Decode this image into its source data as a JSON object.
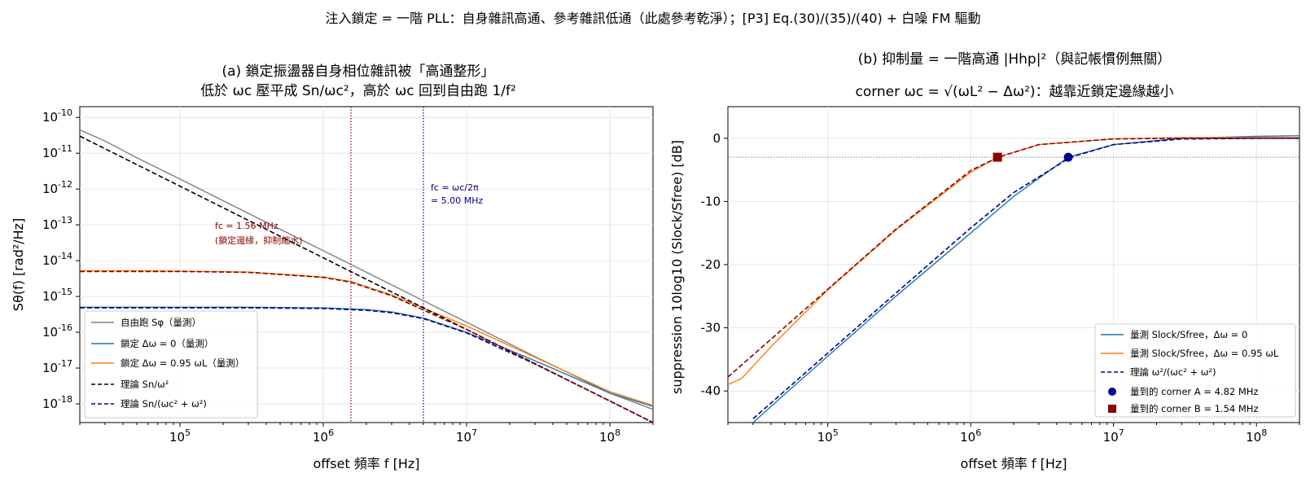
{
  "suptitle": "注入鎖定 = 一階 PLL：自身雜訊高通、參考雜訊低通（此處參考乾淨）；[P3] Eq.(30)/(35)/(40) + 白噪 FM 驅動",
  "panel_a": {
    "title_line1": "(a) 鎖定振盪器自身相位雜訊被「高通整形」",
    "title_line2": "低於 ωc 壓平成 Sn/ωc²，高於 ωc 回到自由跑 1/f²",
    "xlabel": "offset 頻率 f [Hz]",
    "ylabel": "Sθ(f) [rad²/Hz]",
    "annotation_blue_1": "fc = ωc/2π",
    "annotation_blue_2": "= 5.00 MHz",
    "annotation_red_1": "fc = 1.56 MHz",
    "annotation_red_2": "(鎖定邊緣，抑制縮水)",
    "legend": [
      "自由跑 Sφ（量測）",
      "鎖定 Δω = 0（量測）",
      "鎖定 Δω = 0.95 ωL（量測）",
      "理論 Sn/ω²",
      "理論 Sn/(ωc² + ω²)"
    ]
  },
  "panel_b": {
    "title_line1": "(b) 抑制量 = 一階高通 |Hhp|²（與記帳慣例無關）",
    "title_line2": "corner ωc = √(ωL² − Δω²)：越靠近鎖定邊緣越小",
    "xlabel": "offset 頻率 f [Hz]",
    "ylabel": "suppression 10log10 (Slock/Sfree) [dB]",
    "legend": [
      "量測 Slock/Sfree，Δω = 0",
      "量測 Slock/Sfree，Δω = 0.95 ωL",
      "理論 ω²/(ωc² + ω²)",
      "量到的 corner A = 4.82 MHz",
      "量到的 corner B = 1.54 MHz"
    ]
  },
  "colors": {
    "free": "#808080",
    "lock_a": "#1f77b4",
    "lock_b": "#ff7f0e",
    "theory_free": "#000000",
    "theory_hp": "#00008b",
    "fc_b": "#8b0000",
    "grid": "#e6e6e6"
  },
  "chart_data": [
    {
      "type": "line",
      "panel": "a",
      "x_scale": "log",
      "y_scale": "log",
      "xlim": [
        20000,
        200000000
      ],
      "ylim": [
        3e-19,
        2e-10
      ],
      "x_ticks": [
        100000,
        1000000,
        10000000,
        100000000
      ],
      "x_tick_labels": [
        "10^5",
        "10^6",
        "10^7",
        "10^8"
      ],
      "y_ticks": [
        1e-18,
        1e-17,
        1e-16,
        1e-15,
        1e-14,
        1e-13,
        1e-12,
        1e-11,
        1e-10
      ],
      "y_tick_labels": [
        "10^-18",
        "10^-17",
        "10^-16",
        "10^-15",
        "10^-14",
        "10^-13",
        "10^-12",
        "10^-11",
        "10^-10"
      ],
      "grid": true,
      "legend_position": "lower-left",
      "vlines": [
        {
          "x": 1560000,
          "color": "#8b0000",
          "style": "dotted"
        },
        {
          "x": 5000000,
          "color": "#00008b",
          "style": "dotted"
        }
      ],
      "series": [
        {
          "name": "自由跑 Sφ（量測）",
          "color": "#808080",
          "dash": "solid",
          "x": [
            20000,
            30000,
            50000,
            100000,
            300000,
            1000000,
            3000000,
            10000000,
            30000000,
            100000000,
            200000000
          ],
          "y": [
            4.5e-11,
            2.2e-11,
            7.5e-12,
            1.9e-12,
            2.1e-13,
            1.9e-14,
            2.1e-15,
            1.9e-16,
            2.1e-17,
            2e-18,
            7e-19
          ]
        },
        {
          "name": "鎖定 Δω = 0（量測）",
          "color": "#1f77b4",
          "dash": "solid",
          "x": [
            20000,
            50000,
            100000,
            300000,
            1000000,
            2000000,
            3000000,
            5000000,
            10000000,
            30000000,
            100000000,
            200000000
          ],
          "y": [
            5e-16,
            5e-16,
            5e-16,
            5e-16,
            4.8e-16,
            4.3e-16,
            3.7e-16,
            2.5e-16,
            1e-16,
            1.6e-17,
            2e-18,
            8.5e-19
          ]
        },
        {
          "name": "鎖定 Δω = 0.95 ωL（量測）",
          "color": "#ff7f0e",
          "dash": "solid",
          "x": [
            20000,
            50000,
            100000,
            300000,
            1000000,
            1560000,
            3000000,
            10000000,
            30000000,
            100000000,
            200000000
          ],
          "y": [
            5.2e-15,
            5.2e-15,
            5.1e-15,
            4.8e-15,
            3.5e-15,
            2.6e-15,
            1.1e-15,
            1.5e-16,
            2e-17,
            2.2e-18,
            9e-19
          ]
        },
        {
          "name": "理論 Sn/ω²",
          "color": "#000000",
          "dash": "dashed",
          "x": [
            20000,
            200000000
          ],
          "y": [
            3e-11,
            3e-19
          ]
        },
        {
          "name": "理論 Sn/(ωc² + ω²)",
          "color": "#00008b",
          "dash": "dashed",
          "x": [
            20000,
            50000,
            100000,
            300000,
            1000000,
            2000000,
            3000000,
            5000000,
            10000000,
            30000000,
            100000000,
            200000000
          ],
          "y": [
            4.8e-16,
            4.8e-16,
            4.8e-16,
            4.8e-16,
            4.6e-16,
            4.1e-16,
            3.5e-16,
            2.4e-16,
            9.6e-17,
            1.3e-17,
            1.2e-18,
            3e-19
          ]
        },
        {
          "name": "",
          "color": "#8b0000",
          "dash": "dashed",
          "x": [
            20000,
            50000,
            100000,
            300000,
            1000000,
            1560000,
            3000000,
            10000000,
            30000000,
            100000000,
            200000000
          ],
          "y": [
            5e-15,
            5e-15,
            5e-15,
            4.7e-15,
            3.4e-15,
            2.5e-15,
            1.05e-15,
            1.2e-16,
            1.3e-17,
            1.2e-18,
            3e-19
          ]
        }
      ]
    },
    {
      "type": "line",
      "panel": "b",
      "x_scale": "log",
      "y_scale": "linear",
      "xlim": [
        20000,
        200000000
      ],
      "ylim": [
        -45,
        5
      ],
      "x_ticks": [
        100000,
        1000000,
        10000000,
        100000000
      ],
      "x_tick_labels": [
        "10^5",
        "10^6",
        "10^7",
        "10^8"
      ],
      "y_ticks": [
        -40,
        -30,
        -20,
        -10,
        0
      ],
      "y_tick_labels": [
        "-40",
        "-30",
        "-20",
        "-10",
        "0"
      ],
      "grid": true,
      "legend_position": "lower-right",
      "hlines": [
        {
          "y": -3,
          "color": "#808080",
          "style": "dotted"
        }
      ],
      "series": [
        {
          "name": "量測 Slock/Sfree，Δω = 0",
          "color": "#1f77b4",
          "dash": "solid",
          "x": [
            30000,
            50000,
            100000,
            300000,
            1000000,
            2000000,
            4820000,
            10000000,
            30000000,
            100000000,
            200000000
          ],
          "y": [
            -45,
            -40.5,
            -34.5,
            -25,
            -15,
            -9.2,
            -3,
            -1.0,
            0.0,
            0.3,
            0.4
          ]
        },
        {
          "name": "量測 Slock/Sfree，Δω = 0.95 ωL",
          "color": "#ff7f0e",
          "dash": "solid",
          "x": [
            20000,
            25000,
            40000,
            100000,
            300000,
            1000000,
            1540000,
            3000000,
            10000000,
            30000000,
            100000000,
            200000000
          ],
          "y": [
            -39,
            -38,
            -33,
            -24,
            -14.5,
            -5.4,
            -3,
            -1.0,
            -0.1,
            0.1,
            0.1,
            0.1
          ]
        },
        {
          "name": "理論 ω²/(ωc² + ω²)",
          "color": "#00008b",
          "dash": "dashed",
          "x": [
            30000,
            50000,
            100000,
            300000,
            1000000,
            2000000,
            5000000,
            10000000,
            30000000,
            100000000,
            200000000
          ],
          "y": [
            -44.4,
            -40,
            -34,
            -24.5,
            -14.2,
            -8.6,
            -3.0,
            -1.0,
            -0.12,
            -0.01,
            0.0
          ]
        },
        {
          "name": "",
          "color": "#8b0000",
          "dash": "dashed",
          "x": [
            20000,
            50000,
            100000,
            300000,
            1000000,
            1560000,
            3000000,
            10000000,
            30000000,
            100000000,
            200000000
          ],
          "y": [
            -37.8,
            -29.9,
            -23.9,
            -14.4,
            -5.1,
            -3.0,
            -1.0,
            -0.1,
            0.0,
            0.0,
            0.0
          ]
        }
      ],
      "markers": [
        {
          "name": "量到的 corner A = 4.82 MHz",
          "x": 4820000,
          "y": -3,
          "shape": "circle",
          "color": "#00008b"
        },
        {
          "name": "量到的 corner B = 1.54 MHz",
          "x": 1540000,
          "y": -3,
          "shape": "square",
          "color": "#8b0000"
        }
      ]
    }
  ]
}
